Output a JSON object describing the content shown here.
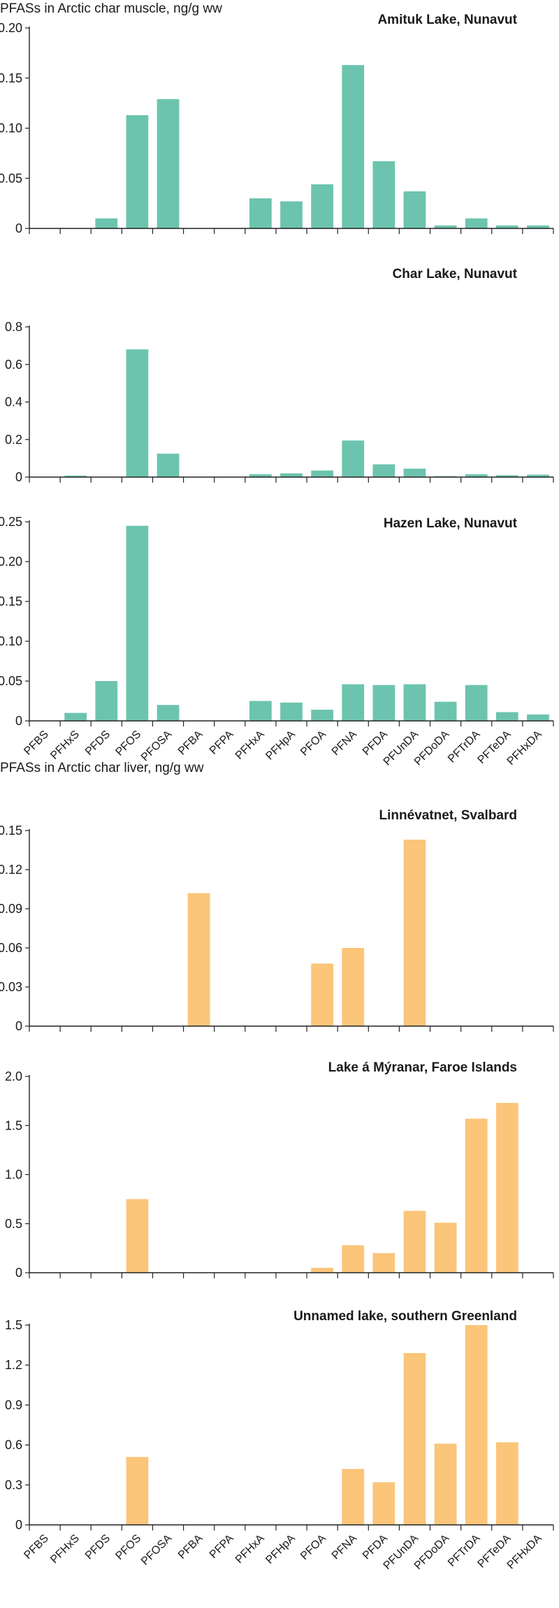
{
  "sections": [
    {
      "title": "PFASs in Arctic char muscle, ng/g ww",
      "color": "#6cc4ae"
    },
    {
      "title": "PFASs in Arctic char liver, ng/g ww",
      "color": "#fbc57a"
    }
  ],
  "categories": [
    "PFBS",
    "PFHxS",
    "PFDS",
    "PFOS",
    "PFOSA",
    "PFBA",
    "PFPA",
    "PFHxA",
    "PFHpA",
    "PFOA",
    "PFNA",
    "PFDA",
    "PFUnDA",
    "PFDoDA",
    "PFTrDA",
    "PFTeDA",
    "PFHxDA"
  ],
  "chart_data": [
    {
      "type": "bar",
      "section": 0,
      "title": "Amituk Lake, Nunavut",
      "ylim": [
        0,
        0.2
      ],
      "yticks": [
        "0",
        "0.05",
        "0.10",
        "0.15",
        "0.20"
      ],
      "values": [
        0,
        0,
        0.01,
        0.113,
        0.129,
        0,
        0,
        0.03,
        0.027,
        0.044,
        0.163,
        0.067,
        0.037,
        0.003,
        0.01,
        0.003,
        0.003
      ]
    },
    {
      "type": "bar",
      "section": 0,
      "title": "Char Lake, Nunavut",
      "ylim": [
        0,
        0.8
      ],
      "yticks": [
        "0",
        "0.2",
        "0.4",
        "0.6",
        "0.8"
      ],
      "values": [
        0,
        0.008,
        0,
        0.68,
        0.125,
        0,
        0,
        0.015,
        0.02,
        0.035,
        0.195,
        0.068,
        0.045,
        0.005,
        0.015,
        0.01,
        0.013
      ]
    },
    {
      "type": "bar",
      "section": 0,
      "title": "Hazen Lake, Nunavut",
      "ylim": [
        0,
        0.25
      ],
      "yticks": [
        "0",
        "0.05",
        "0.10",
        "0.15",
        "0.20",
        "0.25"
      ],
      "values": [
        0,
        0.01,
        0.05,
        0.245,
        0.02,
        0,
        0,
        0.025,
        0.023,
        0.014,
        0.046,
        0.045,
        0.046,
        0.024,
        0.045,
        0.011,
        0.008
      ]
    },
    {
      "type": "bar",
      "section": 1,
      "title": "Linnévatnet, Svalbard",
      "ylim": [
        0,
        0.15
      ],
      "yticks": [
        "0",
        "0.03",
        "0.06",
        "0.09",
        "0.12",
        "0.15"
      ],
      "values": [
        0,
        0,
        0,
        0,
        0,
        0.102,
        0,
        0,
        0,
        0.048,
        0.06,
        0,
        0.143,
        0,
        0,
        0,
        0
      ]
    },
    {
      "type": "bar",
      "section": 1,
      "title": "Lake á Mýranar, Faroe Islands",
      "ylim": [
        0,
        2.0
      ],
      "yticks": [
        "0",
        "0.5",
        "1.0",
        "1.5",
        "2.0"
      ],
      "values": [
        0,
        0,
        0,
        0.75,
        0,
        0,
        0,
        0,
        0,
        0.05,
        0.28,
        0.2,
        0.63,
        0.51,
        1.57,
        1.73,
        0
      ]
    },
    {
      "type": "bar",
      "section": 1,
      "title": "Unnamed lake, southern Greenland",
      "ylim": [
        0,
        1.5
      ],
      "yticks": [
        "0",
        "0.3",
        "0.6",
        "0.9",
        "1.2",
        "1.5"
      ],
      "values": [
        0,
        0,
        0,
        0.51,
        0,
        0,
        0,
        0,
        0,
        0,
        0.42,
        0.32,
        1.29,
        0.61,
        1.5,
        0.62,
        0
      ]
    }
  ]
}
